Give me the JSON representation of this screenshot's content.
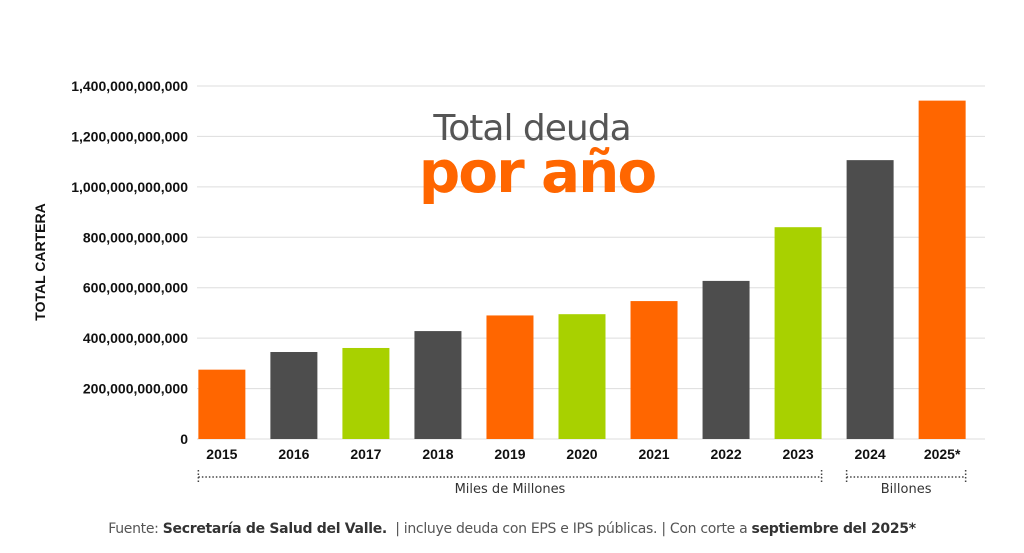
{
  "chart_data": {
    "type": "bar",
    "title": "Total deuda",
    "title_highlight": "por año",
    "xlabel": "",
    "ylabel": "TOTAL CARTERA",
    "ylim": [
      0,
      1400000000000
    ],
    "yticks": [
      "0",
      "200,000,000,000",
      "400,000,000,000",
      "600,000,000,000",
      "800,000,000,000",
      "1,000,000,000,000",
      "1,200,000,000,000",
      "1,400,000,000,000"
    ],
    "grid": true,
    "categories": [
      "2015",
      "2016",
      "2017",
      "2018",
      "2019",
      "2020",
      "2021",
      "2022",
      "2023",
      "2024",
      "2025*"
    ],
    "values": [
      275000000000,
      345000000000,
      361000000000,
      428000000000,
      490000000000,
      495000000000,
      547000000000,
      627000000000,
      840000000000,
      1106000000000,
      1342000000000
    ],
    "bar_colors": [
      "#ff6600",
      "#4d4d4d",
      "#a8d100",
      "#4d4d4d",
      "#ff6600",
      "#a8d100",
      "#ff6600",
      "#4d4d4d",
      "#a8d100",
      "#4d4d4d",
      "#ff6600"
    ],
    "groups": [
      {
        "label": "Miles de Millones",
        "from": "2015",
        "to": "2023"
      },
      {
        "label": "Billones",
        "from": "2024",
        "to": "2025*"
      }
    ]
  },
  "colors": {
    "orange": "#ff6600",
    "gray": "#4d4d4d",
    "green": "#a8d100",
    "title_gray": "#555555"
  },
  "footer": {
    "prefix": "Fuente: ",
    "source": "Secretaría de Salud del Valle.",
    "middle": "  | incluye deuda con EPS e IPS públicas. | Con corte a ",
    "cutoff": "septiembre del 2025*"
  }
}
